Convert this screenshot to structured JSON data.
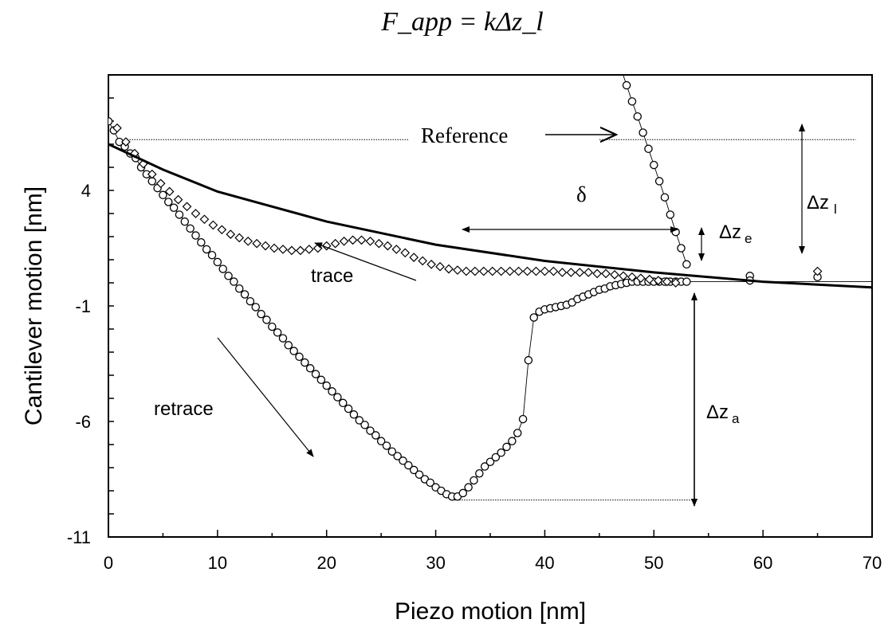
{
  "formula_text": "F_app = kΔz_l",
  "chart_data": {
    "type": "scatter",
    "xlabel": "Piezo motion [nm]",
    "ylabel": "Cantilever motion [nm]",
    "xlim": [
      0,
      70
    ],
    "ylim": [
      -11,
      9
    ],
    "x_ticks": [
      0,
      10,
      20,
      30,
      40,
      50,
      60,
      70
    ],
    "y_ticks": [
      -11,
      -6,
      -1,
      4
    ],
    "grid": false,
    "legend": "none",
    "series": [
      {
        "marker": "circle",
        "connected": true,
        "points": [
          [
            0,
            6.99
          ],
          [
            0.5,
            6.6
          ],
          [
            1,
            6.1
          ],
          [
            1.5,
            5.9
          ],
          [
            2,
            5.6
          ],
          [
            2.5,
            5.4
          ],
          [
            3,
            5.0
          ],
          [
            3.5,
            4.7
          ],
          [
            4,
            4.4
          ],
          [
            4.5,
            4.1
          ],
          [
            5,
            3.8
          ],
          [
            5.5,
            3.5
          ],
          [
            6,
            3.25
          ],
          [
            6.5,
            2.95
          ],
          [
            7,
            2.65
          ],
          [
            7.5,
            2.35
          ],
          [
            8,
            2.05
          ],
          [
            8.5,
            1.75
          ],
          [
            9,
            1.45
          ],
          [
            9.5,
            1.2
          ],
          [
            10,
            0.9
          ],
          [
            10.5,
            0.6
          ],
          [
            11,
            0.3
          ],
          [
            11.5,
            0.05
          ],
          [
            12,
            -0.25
          ],
          [
            12.5,
            -0.5
          ],
          [
            13,
            -0.8
          ],
          [
            13.5,
            -1.05
          ],
          [
            14,
            -1.35
          ],
          [
            14.5,
            -1.6
          ],
          [
            15,
            -1.9
          ],
          [
            15.5,
            -2.15
          ],
          [
            16,
            -2.4
          ],
          [
            16.5,
            -2.7
          ],
          [
            17,
            -2.95
          ],
          [
            17.5,
            -3.2
          ],
          [
            18,
            -3.45
          ],
          [
            18.5,
            -3.7
          ],
          [
            19,
            -3.95
          ],
          [
            19.5,
            -4.2
          ],
          [
            20,
            -4.45
          ],
          [
            20.5,
            -4.7
          ],
          [
            21,
            -4.95
          ],
          [
            21.5,
            -5.2
          ],
          [
            22,
            -5.45
          ],
          [
            22.5,
            -5.7
          ],
          [
            23,
            -5.95
          ],
          [
            23.5,
            -6.15
          ],
          [
            24,
            -6.4
          ],
          [
            24.5,
            -6.6
          ],
          [
            25,
            -6.85
          ],
          [
            25.5,
            -7.05
          ],
          [
            26,
            -7.3
          ],
          [
            26.5,
            -7.5
          ],
          [
            27,
            -7.7
          ],
          [
            27.5,
            -7.9
          ],
          [
            28,
            -8.1
          ],
          [
            28.5,
            -8.3
          ],
          [
            29,
            -8.5
          ],
          [
            29.5,
            -8.65
          ],
          [
            30,
            -8.85
          ],
          [
            30.5,
            -9.0
          ],
          [
            31,
            -9.15
          ],
          [
            31.5,
            -9.25
          ],
          [
            32,
            -9.25
          ],
          [
            32.5,
            -9.1
          ],
          [
            33,
            -8.85
          ],
          [
            33.5,
            -8.55
          ],
          [
            34,
            -8.25
          ],
          [
            34.5,
            -7.95
          ],
          [
            35,
            -7.75
          ],
          [
            35.5,
            -7.55
          ],
          [
            36,
            -7.35
          ],
          [
            36.5,
            -7.1
          ],
          [
            37,
            -6.85
          ],
          [
            37.5,
            -6.5
          ],
          [
            38,
            -5.9
          ],
          [
            38.5,
            -3.35
          ],
          [
            39,
            -1.5
          ],
          [
            39.5,
            -1.25
          ],
          [
            40,
            -1.15
          ],
          [
            40.5,
            -1.1
          ],
          [
            41,
            -1.05
          ],
          [
            41.5,
            -1.0
          ],
          [
            42,
            -0.95
          ],
          [
            42.5,
            -0.85
          ],
          [
            43,
            -0.7
          ],
          [
            43.5,
            -0.6
          ],
          [
            44,
            -0.5
          ],
          [
            44.5,
            -0.4
          ],
          [
            45,
            -0.3
          ],
          [
            45.5,
            -0.25
          ],
          [
            46,
            -0.15
          ],
          [
            46.5,
            -0.1
          ],
          [
            47,
            -0.05
          ],
          [
            47.5,
            0.0
          ],
          [
            48,
            0.05
          ],
          [
            48.5,
            0.05
          ],
          [
            49,
            0.05
          ],
          [
            49.5,
            0.05
          ],
          [
            50,
            0.05
          ],
          [
            50.5,
            0.05
          ],
          [
            51,
            0.05
          ],
          [
            51.5,
            0.05
          ],
          [
            52,
            0.05
          ],
          [
            52.5,
            0.05
          ],
          [
            53,
            0.05
          ]
        ]
      },
      {
        "marker": "circle",
        "connected": true,
        "points": [
          [
            46,
            10.5
          ],
          [
            46.5,
            9.85
          ],
          [
            47,
            9.25
          ],
          [
            47.5,
            8.55
          ],
          [
            48,
            7.85
          ],
          [
            48.5,
            7.2
          ],
          [
            49,
            6.5
          ],
          [
            49.5,
            5.8
          ],
          [
            50,
            5.1
          ],
          [
            50.5,
            4.4
          ],
          [
            51,
            3.7
          ],
          [
            51.5,
            2.95
          ],
          [
            52,
            2.2
          ],
          [
            52.5,
            1.5
          ],
          [
            53,
            0.8
          ]
        ]
      },
      {
        "marker": "circle",
        "connected": false,
        "points": [
          [
            58.8,
            0.3
          ],
          [
            58.8,
            0.1
          ],
          [
            65,
            0.25
          ]
        ]
      },
      {
        "marker": "diamond",
        "connected": false,
        "points": [
          [
            0.8,
            6.7
          ],
          [
            1.6,
            6.1
          ],
          [
            2.4,
            5.6
          ],
          [
            3.2,
            5.15
          ],
          [
            4.0,
            4.7
          ],
          [
            4.8,
            4.3
          ],
          [
            5.6,
            3.95
          ],
          [
            6.4,
            3.6
          ],
          [
            7.2,
            3.3
          ],
          [
            8.0,
            3.0
          ],
          [
            8.8,
            2.75
          ],
          [
            9.6,
            2.5
          ],
          [
            10.4,
            2.3
          ],
          [
            11.2,
            2.1
          ],
          [
            12.0,
            1.95
          ],
          [
            12.8,
            1.8
          ],
          [
            13.6,
            1.7
          ],
          [
            14.4,
            1.6
          ],
          [
            15.2,
            1.5
          ],
          [
            16.0,
            1.45
          ],
          [
            16.8,
            1.4
          ],
          [
            17.6,
            1.4
          ],
          [
            18.4,
            1.45
          ],
          [
            19.2,
            1.5
          ],
          [
            20.0,
            1.6
          ],
          [
            20.8,
            1.7
          ],
          [
            21.6,
            1.8
          ],
          [
            22.4,
            1.85
          ],
          [
            23.2,
            1.85
          ],
          [
            24.0,
            1.8
          ],
          [
            24.8,
            1.7
          ],
          [
            25.6,
            1.6
          ],
          [
            26.4,
            1.45
          ],
          [
            27.2,
            1.3
          ],
          [
            28.0,
            1.1
          ],
          [
            28.8,
            0.95
          ],
          [
            29.6,
            0.8
          ],
          [
            30.4,
            0.7
          ],
          [
            31.2,
            0.6
          ],
          [
            32.0,
            0.55
          ],
          [
            32.8,
            0.5
          ],
          [
            33.6,
            0.5
          ],
          [
            34.4,
            0.5
          ],
          [
            35.2,
            0.5
          ],
          [
            36.0,
            0.5
          ],
          [
            36.8,
            0.5
          ],
          [
            37.6,
            0.5
          ],
          [
            38.4,
            0.5
          ],
          [
            39.2,
            0.5
          ],
          [
            40.0,
            0.5
          ],
          [
            40.8,
            0.5
          ],
          [
            41.6,
            0.45
          ],
          [
            42.4,
            0.45
          ],
          [
            43.2,
            0.45
          ],
          [
            44.0,
            0.45
          ],
          [
            44.8,
            0.4
          ],
          [
            45.6,
            0.4
          ],
          [
            46.4,
            0.35
          ],
          [
            47.2,
            0.3
          ],
          [
            48.0,
            0.25
          ],
          [
            48.8,
            0.2
          ],
          [
            49.6,
            0.15
          ],
          [
            50.4,
            0.1
          ],
          [
            51.2,
            0.05
          ],
          [
            52.0,
            0.0
          ],
          [
            65,
            0.5
          ]
        ]
      },
      {
        "marker": "none",
        "line": "thick",
        "points": [
          [
            0,
            6.0
          ],
          [
            5,
            4.9
          ],
          [
            10,
            3.95
          ],
          [
            20,
            2.65
          ],
          [
            30,
            1.65
          ],
          [
            40,
            0.95
          ],
          [
            50,
            0.45
          ],
          [
            60,
            0.05
          ],
          [
            70,
            -0.2
          ]
        ]
      }
    ],
    "reference_lines": [
      {
        "y": 6.2,
        "x1": 1.5,
        "x2": 27.5
      },
      {
        "y": 6.2,
        "x1": 45,
        "x2": 68.5
      },
      {
        "y": -9.4,
        "x1": 31.5,
        "x2": 54
      }
    ],
    "annotations": [
      {
        "text": "Reference",
        "x": 29,
        "y": 5.75
      },
      {
        "text": "δ",
        "x": 43,
        "y": 3.3
      },
      {
        "text": "trace",
        "x": 19,
        "y": -0.4
      },
      {
        "text": "retrace",
        "x": 6.5,
        "y": -5.9
      },
      {
        "text": "Δz",
        "sub": "e",
        "x": 56,
        "y": 1.2
      },
      {
        "text": "Δz",
        "sub": "l",
        "x": 64.7,
        "y": 3.3
      },
      {
        "text": "Δz",
        "sub": "a",
        "x": 55.7,
        "y": -5.9
      }
    ]
  }
}
